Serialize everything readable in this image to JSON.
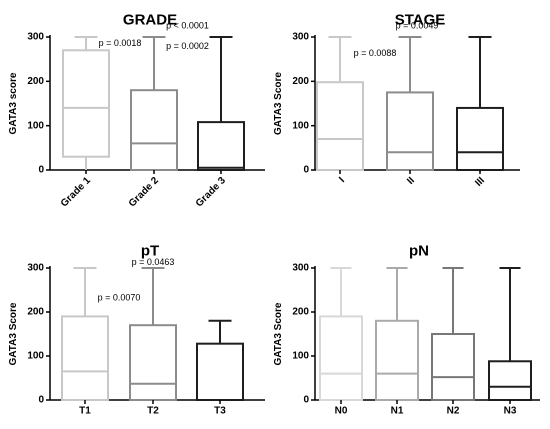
{
  "chart_data": [
    {
      "type": "boxplot",
      "title": "GRADE",
      "ylabel": "GATA3 score",
      "ylim": [
        0,
        300
      ],
      "yticks": [
        0,
        100,
        200,
        300
      ],
      "categories": [
        "Grade 1",
        "Grade 2",
        "Grade 3"
      ],
      "boxes": [
        {
          "min": 0,
          "q1": 30,
          "median": 140,
          "q3": 270,
          "max": 300,
          "color": "#c8c8c8"
        },
        {
          "min": 0,
          "q1": 0,
          "median": 60,
          "q3": 180,
          "max": 300,
          "color": "#8c8c8c"
        },
        {
          "min": 0,
          "q1": 0,
          "median": 5,
          "q3": 108,
          "max": 300,
          "color": "#1e1e1e"
        }
      ],
      "annotations": [
        {
          "text": "p < 0.0001",
          "x": 1.5,
          "y": 325
        },
        {
          "text": "p = 0.0018",
          "x": 0.5,
          "y": 285
        },
        {
          "text": "p = 0.0002",
          "x": 1.5,
          "y": 278
        }
      ]
    },
    {
      "type": "boxplot",
      "title": "STAGE",
      "ylabel": "GATA3 Score",
      "ylim": [
        0,
        300
      ],
      "yticks": [
        0,
        100,
        200,
        300
      ],
      "categories": [
        "I",
        "II",
        "III"
      ],
      "boxes": [
        {
          "min": 0,
          "q1": 0,
          "median": 70,
          "q3": 198,
          "max": 300,
          "color": "#c8c8c8"
        },
        {
          "min": 0,
          "q1": 0,
          "median": 40,
          "q3": 175,
          "max": 300,
          "color": "#8c8c8c"
        },
        {
          "min": 0,
          "q1": 0,
          "median": 40,
          "q3": 140,
          "max": 300,
          "color": "#1e1e1e"
        }
      ],
      "annotations": [
        {
          "text": "p = 0.0049",
          "x": 1.1,
          "y": 325
        },
        {
          "text": "p = 0.0088",
          "x": 0.5,
          "y": 262
        }
      ]
    },
    {
      "type": "boxplot",
      "title": "pT",
      "ylabel": "GATA3 Score",
      "ylim": [
        0,
        300
      ],
      "yticks": [
        0,
        100,
        200,
        300
      ],
      "categories": [
        "T1",
        "T2",
        "T3"
      ],
      "boxes": [
        {
          "min": 0,
          "q1": 0,
          "median": 65,
          "q3": 190,
          "max": 300,
          "color": "#c8c8c8"
        },
        {
          "min": 0,
          "q1": 0,
          "median": 37,
          "q3": 170,
          "max": 300,
          "color": "#8c8c8c"
        },
        {
          "min": 0,
          "q1": 0,
          "median": 0,
          "q3": 128,
          "max": 180,
          "color": "#1e1e1e"
        }
      ],
      "annotations": [
        {
          "text": "p = 0.0463",
          "x": 1.0,
          "y": 312
        },
        {
          "text": "p = 0.0070",
          "x": 0.5,
          "y": 232
        }
      ]
    },
    {
      "type": "boxplot",
      "title": "pN",
      "ylabel": "GATA3 Score",
      "ylim": [
        0,
        300
      ],
      "yticks": [
        0,
        100,
        200,
        300
      ],
      "categories": [
        "N0",
        "N1",
        "N2",
        "N3"
      ],
      "boxes": [
        {
          "min": 0,
          "q1": 0,
          "median": 60,
          "q3": 190,
          "max": 300,
          "color": "#d8d8d8"
        },
        {
          "min": 0,
          "q1": 0,
          "median": 60,
          "q3": 180,
          "max": 300,
          "color": "#aaaaaa"
        },
        {
          "min": 0,
          "q1": 0,
          "median": 52,
          "q3": 150,
          "max": 300,
          "color": "#777777"
        },
        {
          "min": 0,
          "q1": 0,
          "median": 30,
          "q3": 88,
          "max": 300,
          "color": "#1e1e1e"
        }
      ],
      "annotations": []
    }
  ]
}
